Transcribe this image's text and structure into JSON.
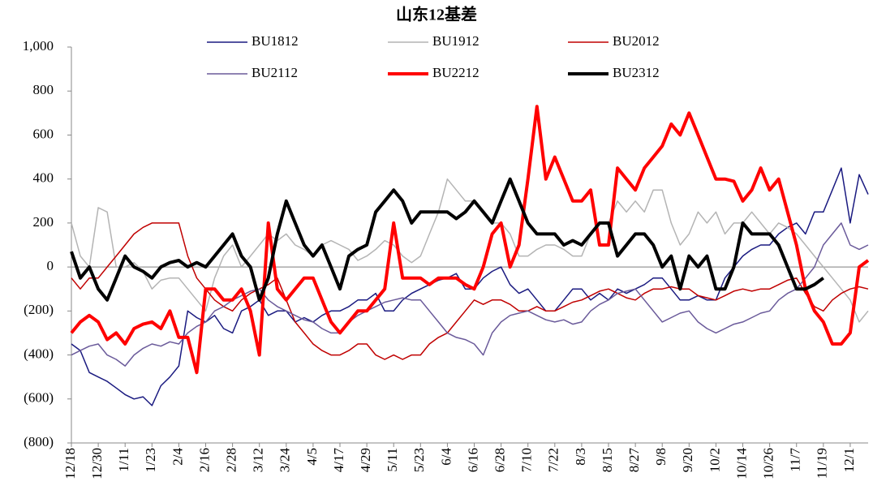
{
  "chart_data": {
    "type": "line",
    "title": "山东12基差",
    "categories": [
      "12/18",
      null,
      null,
      "12/30",
      null,
      null,
      "1/11",
      null,
      null,
      "1/23",
      null,
      null,
      "2/4",
      null,
      null,
      "2/16",
      null,
      null,
      "2/28",
      null,
      null,
      "3/12",
      null,
      null,
      "3/24",
      null,
      null,
      "4/5",
      null,
      null,
      "4/17",
      null,
      null,
      "4/29",
      null,
      null,
      "5/11",
      null,
      null,
      "5/23",
      null,
      null,
      "6/4",
      null,
      null,
      "6/16",
      null,
      null,
      "6/28",
      null,
      null,
      "7/10",
      null,
      null,
      "7/22",
      null,
      null,
      "8/3",
      null,
      null,
      "8/15",
      null,
      null,
      "8/27",
      null,
      null,
      "9/8",
      null,
      null,
      "9/20",
      null,
      null,
      "10/2",
      null,
      null,
      "10/14",
      null,
      null,
      "10/26",
      null,
      null,
      "11/7",
      null,
      null,
      "11/19",
      null,
      null,
      "12/1",
      null,
      null
    ],
    "ylim": [
      -800,
      1000
    ],
    "yticks": [
      {
        "value": 1000,
        "label": "1,000"
      },
      800,
      600,
      400,
      200,
      0,
      {
        "value": -200,
        "label": "(200)"
      },
      {
        "value": -400,
        "label": "(400)"
      },
      {
        "value": -600,
        "label": "(600)"
      },
      {
        "value": -800,
        "label": "(800)"
      }
    ],
    "series": [
      {
        "name": "BU1812",
        "color": "#1a1a80",
        "width": 1.5,
        "values": [
          -350,
          -380,
          -480,
          -500,
          -520,
          -550,
          -580,
          -600,
          -590,
          -630,
          -540,
          -500,
          -450,
          -200,
          -230,
          -250,
          -220,
          -280,
          -300,
          -200,
          -180,
          -150,
          -220,
          -200,
          -200,
          -250,
          -230,
          -250,
          -220,
          -200,
          -200,
          -180,
          -150,
          -150,
          -120,
          -200,
          -200,
          -150,
          -120,
          -100,
          -80,
          -60,
          -50,
          -30,
          -100,
          -100,
          -50,
          -20,
          0,
          -80,
          -120,
          -100,
          -150,
          -200,
          -200,
          -150,
          -100,
          -100,
          -150,
          -120,
          -150,
          -100,
          -120,
          -100,
          -80,
          -50,
          -50,
          -100,
          -150,
          -150,
          -130,
          -150,
          -150,
          -50,
          0,
          50,
          80,
          100,
          100,
          150,
          180,
          200,
          150,
          250,
          250,
          350,
          450,
          200,
          420,
          330
        ]
      },
      {
        "name": "BU1912",
        "color": "#b4b4b4",
        "width": 1.5,
        "values": [
          200,
          50,
          0,
          270,
          250,
          0,
          0,
          20,
          -20,
          -100,
          -60,
          -50,
          -50,
          -100,
          -150,
          -200,
          -50,
          50,
          100,
          0,
          50,
          100,
          150,
          120,
          150,
          100,
          80,
          50,
          100,
          120,
          100,
          80,
          30,
          50,
          80,
          120,
          100,
          50,
          20,
          50,
          150,
          250,
          400,
          350,
          300,
          300,
          250,
          200,
          200,
          150,
          50,
          50,
          80,
          100,
          100,
          80,
          50,
          50,
          150,
          200,
          200,
          300,
          250,
          300,
          250,
          350,
          350,
          200,
          100,
          150,
          250,
          200,
          250,
          150,
          200,
          200,
          250,
          200,
          150,
          200,
          180,
          150,
          100,
          50,
          0,
          -50,
          -100,
          -150,
          -250,
          -200
        ]
      },
      {
        "name": "BU2012",
        "color": "#c00000",
        "width": 1.5,
        "values": [
          -50,
          -100,
          -50,
          -50,
          0,
          50,
          100,
          150,
          180,
          200,
          200,
          200,
          200,
          50,
          -50,
          -100,
          -150,
          -180,
          -200,
          -150,
          -120,
          -100,
          -80,
          -50,
          -150,
          -250,
          -300,
          -350,
          -380,
          -400,
          -400,
          -380,
          -350,
          -350,
          -400,
          -420,
          -400,
          -420,
          -400,
          -400,
          -350,
          -320,
          -300,
          -250,
          -200,
          -150,
          -170,
          -150,
          -150,
          -170,
          -200,
          -200,
          -180,
          -200,
          -200,
          -180,
          -160,
          -150,
          -130,
          -110,
          -100,
          -120,
          -140,
          -150,
          -120,
          -100,
          -100,
          -90,
          -100,
          -100,
          -130,
          -140,
          -150,
          -130,
          -110,
          -100,
          -110,
          -100,
          -100,
          -80,
          -60,
          -50,
          -120,
          -180,
          -200,
          -150,
          -120,
          -100,
          -90,
          -100
        ]
      },
      {
        "name": "BU2112",
        "color": "#6a5a9a",
        "width": 1.5,
        "values": [
          -400,
          -380,
          -360,
          -350,
          -400,
          -420,
          -450,
          -400,
          -370,
          -350,
          -360,
          -340,
          -350,
          -300,
          -270,
          -250,
          -200,
          -180,
          -150,
          -130,
          -110,
          -100,
          -150,
          -180,
          -200,
          -220,
          -240,
          -250,
          -280,
          -300,
          -300,
          -250,
          -220,
          -200,
          -180,
          -160,
          -150,
          -140,
          -150,
          -150,
          -200,
          -250,
          -300,
          -320,
          -330,
          -350,
          -400,
          -300,
          -250,
          -220,
          -210,
          -200,
          -220,
          -240,
          -250,
          -240,
          -260,
          -250,
          -200,
          -170,
          -150,
          -120,
          -110,
          -100,
          -150,
          -200,
          -250,
          -230,
          -210,
          -200,
          -250,
          -280,
          -300,
          -280,
          -260,
          -250,
          -230,
          -210,
          -200,
          -150,
          -120,
          -100,
          -50,
          0,
          100,
          150,
          200,
          100,
          80,
          100
        ]
      },
      {
        "name": "BU2212",
        "color": "#ff0000",
        "width": 4,
        "values": [
          -300,
          -250,
          -220,
          -250,
          -330,
          -300,
          -350,
          -280,
          -260,
          -250,
          -280,
          -200,
          -320,
          -320,
          -480,
          -100,
          -100,
          -150,
          -150,
          -100,
          -200,
          -400,
          200,
          -100,
          -150,
          -100,
          -50,
          -50,
          -150,
          -250,
          -300,
          -250,
          -200,
          -200,
          -150,
          -100,
          200,
          -50,
          -50,
          -50,
          -80,
          -50,
          -50,
          -50,
          -80,
          -100,
          0,
          150,
          200,
          0,
          100,
          400,
          730,
          400,
          500,
          400,
          300,
          300,
          350,
          100,
          100,
          450,
          400,
          350,
          450,
          500,
          550,
          650,
          600,
          700,
          600,
          500,
          400,
          400,
          390,
          300,
          350,
          450,
          350,
          400,
          250,
          100,
          -100,
          -200,
          -250,
          -350,
          -350,
          -300,
          0,
          30
        ]
      },
      {
        "name": "BU2312",
        "color": "#000000",
        "width": 4,
        "values": [
          70,
          -50,
          0,
          -100,
          -150,
          -50,
          50,
          0,
          -20,
          -50,
          0,
          20,
          30,
          0,
          20,
          0,
          50,
          100,
          150,
          50,
          0,
          -150,
          -50,
          150,
          300,
          200,
          100,
          50,
          100,
          0,
          -100,
          50,
          80,
          100,
          250,
          300,
          350,
          300,
          200,
          250,
          250,
          250,
          250,
          220,
          250,
          300,
          250,
          200,
          300,
          400,
          300,
          200,
          150,
          150,
          150,
          100,
          120,
          100,
          150,
          200,
          200,
          50,
          100,
          150,
          150,
          100,
          0,
          50,
          -100,
          50,
          0,
          50,
          -100,
          -100,
          0,
          200,
          150,
          150,
          150,
          100,
          0,
          -100,
          -100,
          -80,
          -50,
          null,
          null,
          null,
          null,
          null
        ]
      }
    ]
  }
}
